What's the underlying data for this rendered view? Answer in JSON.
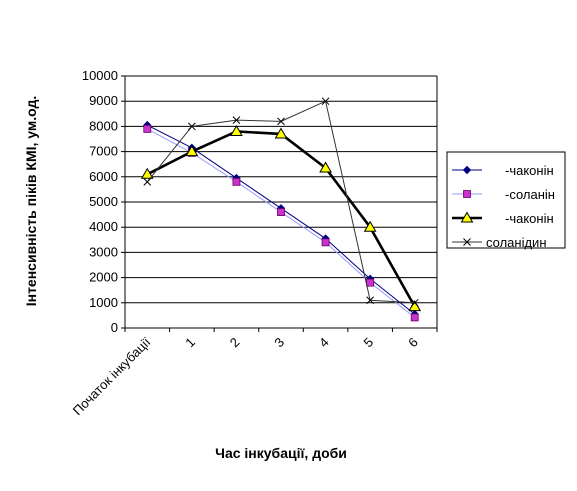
{
  "chart_data": {
    "type": "line",
    "title": "",
    "xlabel": "Час інкубації, доби",
    "ylabel": "Інтенсивність піків КМІ, ум.од.",
    "categories": [
      "Початок інкубації",
      "1",
      "2",
      "3",
      "4",
      "5",
      "6"
    ],
    "ylim": [
      0,
      10000
    ],
    "yticks": [
      "0",
      "1000",
      "2000",
      "3000",
      "4000",
      "5000",
      "6000",
      "7000",
      "8000",
      "9000",
      "10000"
    ],
    "grid": "horizontal",
    "legend_position": "right",
    "series": [
      {
        "name": "-чаконін",
        "values": [
          8050,
          7150,
          5950,
          4750,
          3550,
          1950,
          550
        ],
        "color": "#000080",
        "marker": "diamond",
        "marker_color": "#000080",
        "line_width": "thin"
      },
      {
        "name": "-соланін",
        "values": [
          7900,
          6950,
          5800,
          4600,
          3400,
          1800,
          420
        ],
        "color": "#9999ff",
        "marker": "square",
        "marker_color": "#cc33cc",
        "line_width": "thin"
      },
      {
        "name": "-чаконін",
        "values": [
          6100,
          7000,
          7800,
          7700,
          6350,
          4000,
          850
        ],
        "color": "#000000",
        "marker": "triangle",
        "marker_color": "#ffff00",
        "line_width": "thick"
      },
      {
        "name": "соланідин",
        "values": [
          5800,
          8000,
          8250,
          8200,
          9000,
          1100,
          1000
        ],
        "color": "#333333",
        "marker": "x",
        "marker_color": "#000000",
        "line_width": "thin"
      }
    ]
  }
}
